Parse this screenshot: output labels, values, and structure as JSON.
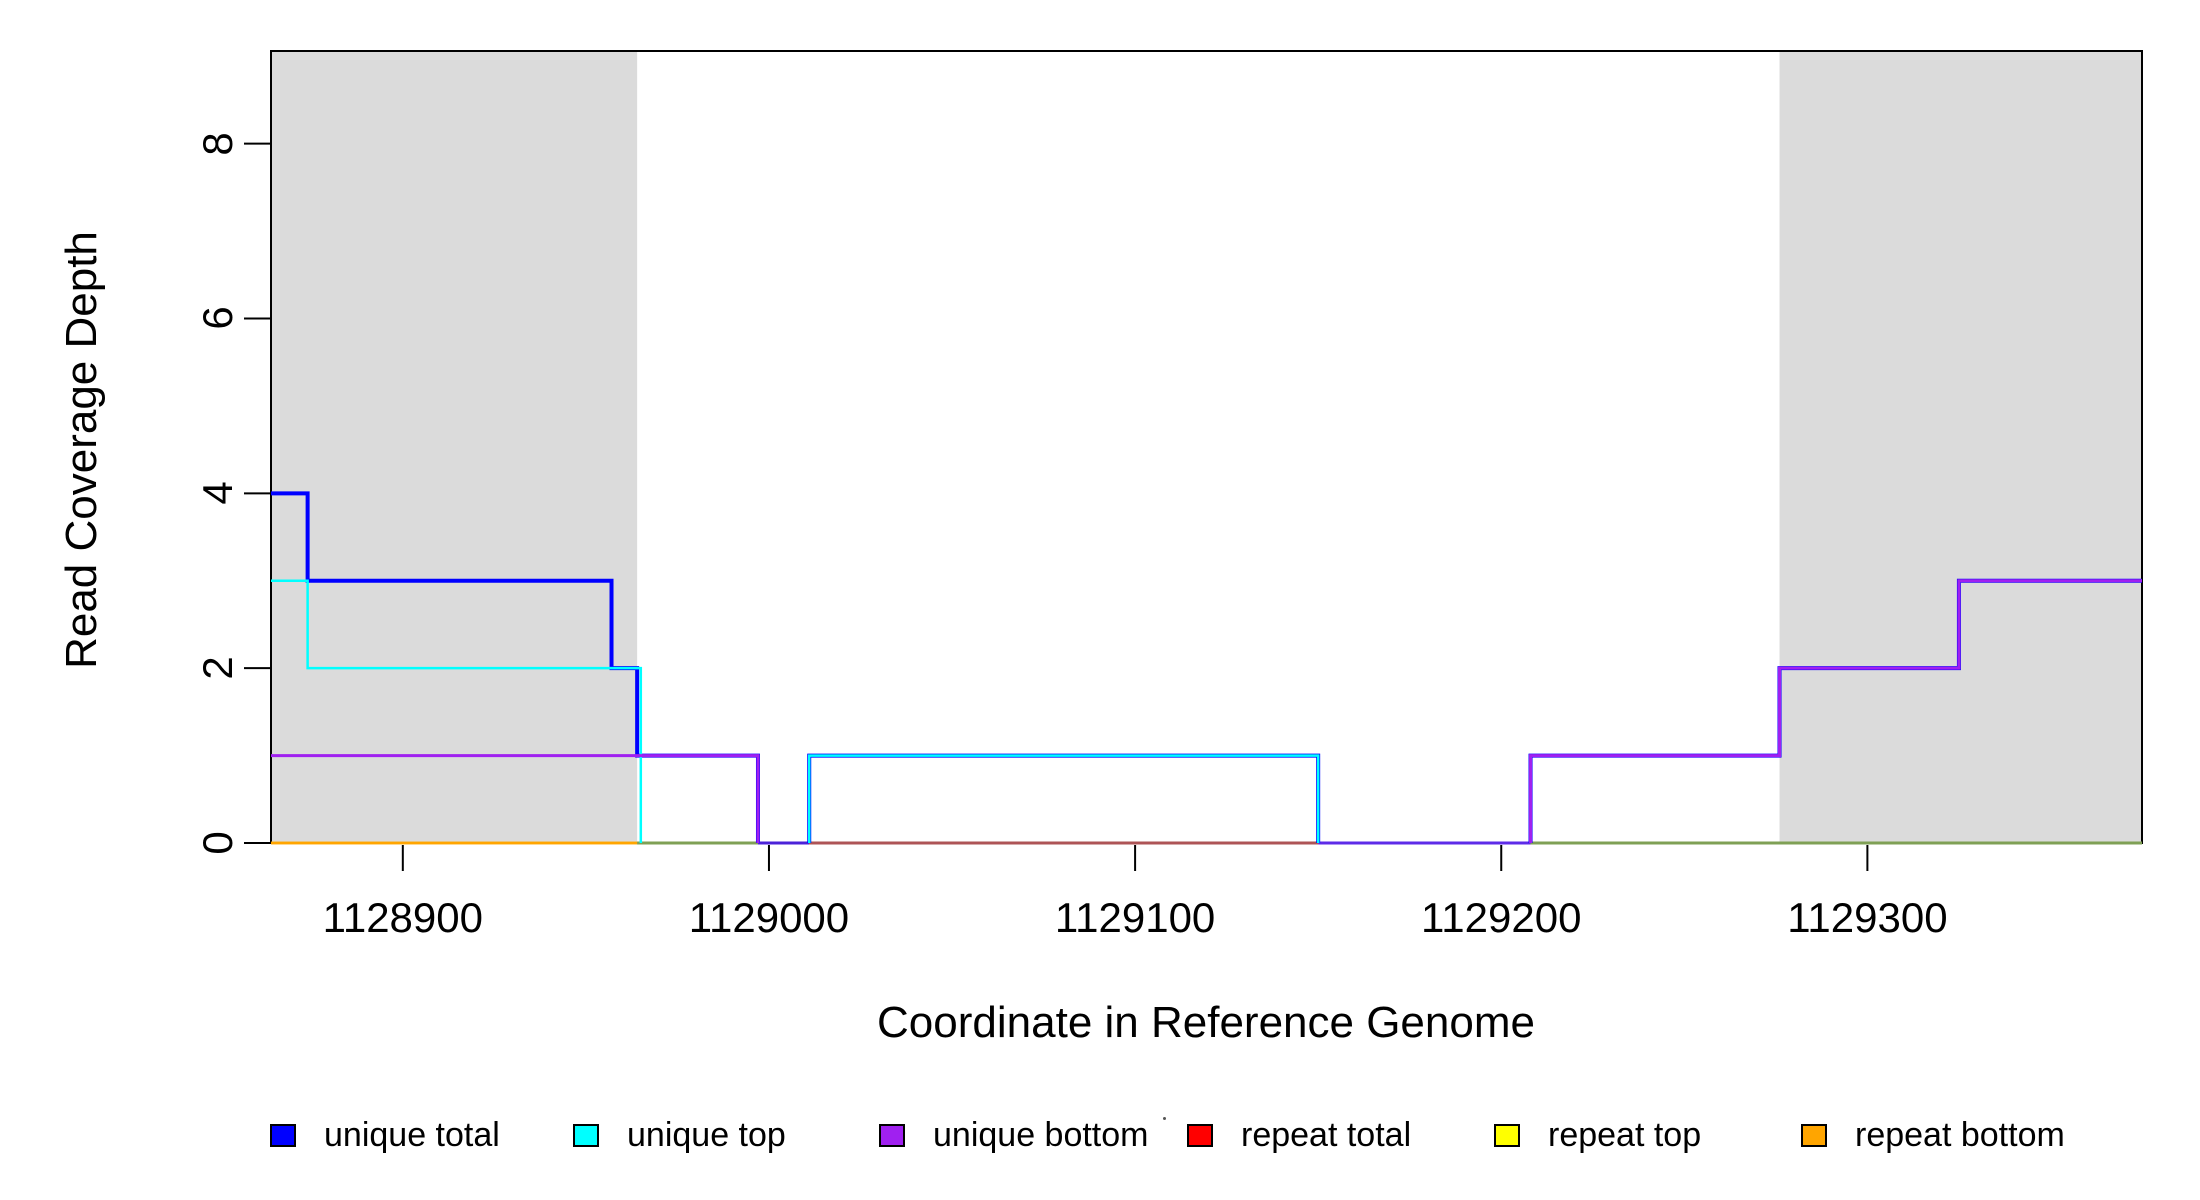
{
  "chart_data": {
    "type": "line",
    "subtype": "step-coverage",
    "title": "",
    "xlabel": "Coordinate in Reference Genome",
    "ylabel": "Read Coverage Depth",
    "xlim": [
      1128864,
      1129375
    ],
    "ylim": [
      0,
      9.06
    ],
    "x_ticks": [
      1128900,
      1129000,
      1129100,
      1129200,
      1129300
    ],
    "y_ticks": [
      0,
      2,
      4,
      6,
      8
    ],
    "grid": false,
    "legend_position": "bottom",
    "plot_background": "#FFFFFF",
    "shading_color": "#DBDBDB",
    "shaded_regions": [
      {
        "x_start": 1128864,
        "x_end": 1128964,
        "color": "#DBDBDB"
      },
      {
        "x_start": 1129276,
        "x_end": 1129375,
        "color": "#DBDBDB"
      }
    ],
    "series": [
      {
        "name": "unique total",
        "color": "#0000FF",
        "line_width": 4,
        "z": 5,
        "steps": [
          [
            1128864,
            1128874,
            4
          ],
          [
            1128874,
            1128957,
            3
          ],
          [
            1128957,
            1128964,
            2
          ],
          [
            1128964,
            1128997,
            1
          ],
          [
            1128997,
            1129011,
            0
          ],
          [
            1129011,
            1129150,
            1
          ],
          [
            1129150,
            1129208,
            0
          ],
          [
            1129208,
            1129276,
            1
          ],
          [
            1129276,
            1129325,
            2
          ],
          [
            1129325,
            1129375,
            3
          ]
        ]
      },
      {
        "name": "unique top",
        "color": "#00FFFF",
        "line_width": 2.5,
        "z": 6,
        "steps": [
          [
            1128864,
            1128874,
            3
          ],
          [
            1128874,
            1128965,
            2
          ],
          [
            1128965,
            1129011,
            0
          ],
          [
            1129011,
            1129150,
            1
          ],
          [
            1129150,
            1129375,
            0
          ]
        ]
      },
      {
        "name": "unique bottom",
        "color": "#A020F0",
        "line_width": 3,
        "z": 7,
        "steps": [
          [
            1128864,
            1128997,
            1
          ],
          [
            1128997,
            1129208,
            0
          ],
          [
            1129208,
            1129276,
            1
          ],
          [
            1129276,
            1129325,
            2
          ],
          [
            1129325,
            1129375,
            3
          ]
        ]
      },
      {
        "name": "repeat total",
        "color": "#FF0000",
        "line_width": 2.5,
        "z": 1,
        "steps": [
          [
            1128864,
            1129375,
            0
          ]
        ]
      },
      {
        "name": "repeat top",
        "color": "#FFFF00",
        "line_width": 2.5,
        "z": 2,
        "steps": [
          [
            1128864,
            1129375,
            0
          ]
        ]
      },
      {
        "name": "repeat bottom",
        "color": "#FFA500",
        "line_width": 2.5,
        "z": 3,
        "steps": [
          [
            1128864,
            1129375,
            0
          ]
        ]
      }
    ],
    "baseline_overlap_segments": [
      {
        "x_start": 1128964,
        "x_end": 1128997,
        "color": "#7FA055",
        "z": 4
      },
      {
        "x_start": 1128997,
        "x_end": 1129011,
        "color": "#4B22D8",
        "z": 4
      },
      {
        "x_start": 1129011,
        "x_end": 1129150,
        "color": "#AE5456",
        "z": 4
      },
      {
        "x_start": 1129150,
        "x_end": 1129208,
        "color": "#5E2BE8",
        "z": 4
      },
      {
        "x_start": 1129208,
        "x_end": 1129375,
        "color": "#7FA055",
        "z": 4
      }
    ],
    "legend": [
      {
        "label": "unique total",
        "color": "#0000FF"
      },
      {
        "label": "unique top",
        "color": "#00FFFF"
      },
      {
        "label": "unique bottom",
        "color": "#A020F0"
      },
      {
        "label": "repeat total",
        "color": "#FF0000"
      },
      {
        "label": "repeat top",
        "color": "#FFFF00"
      },
      {
        "label": "repeat bottom",
        "color": "#FFA500"
      }
    ]
  }
}
